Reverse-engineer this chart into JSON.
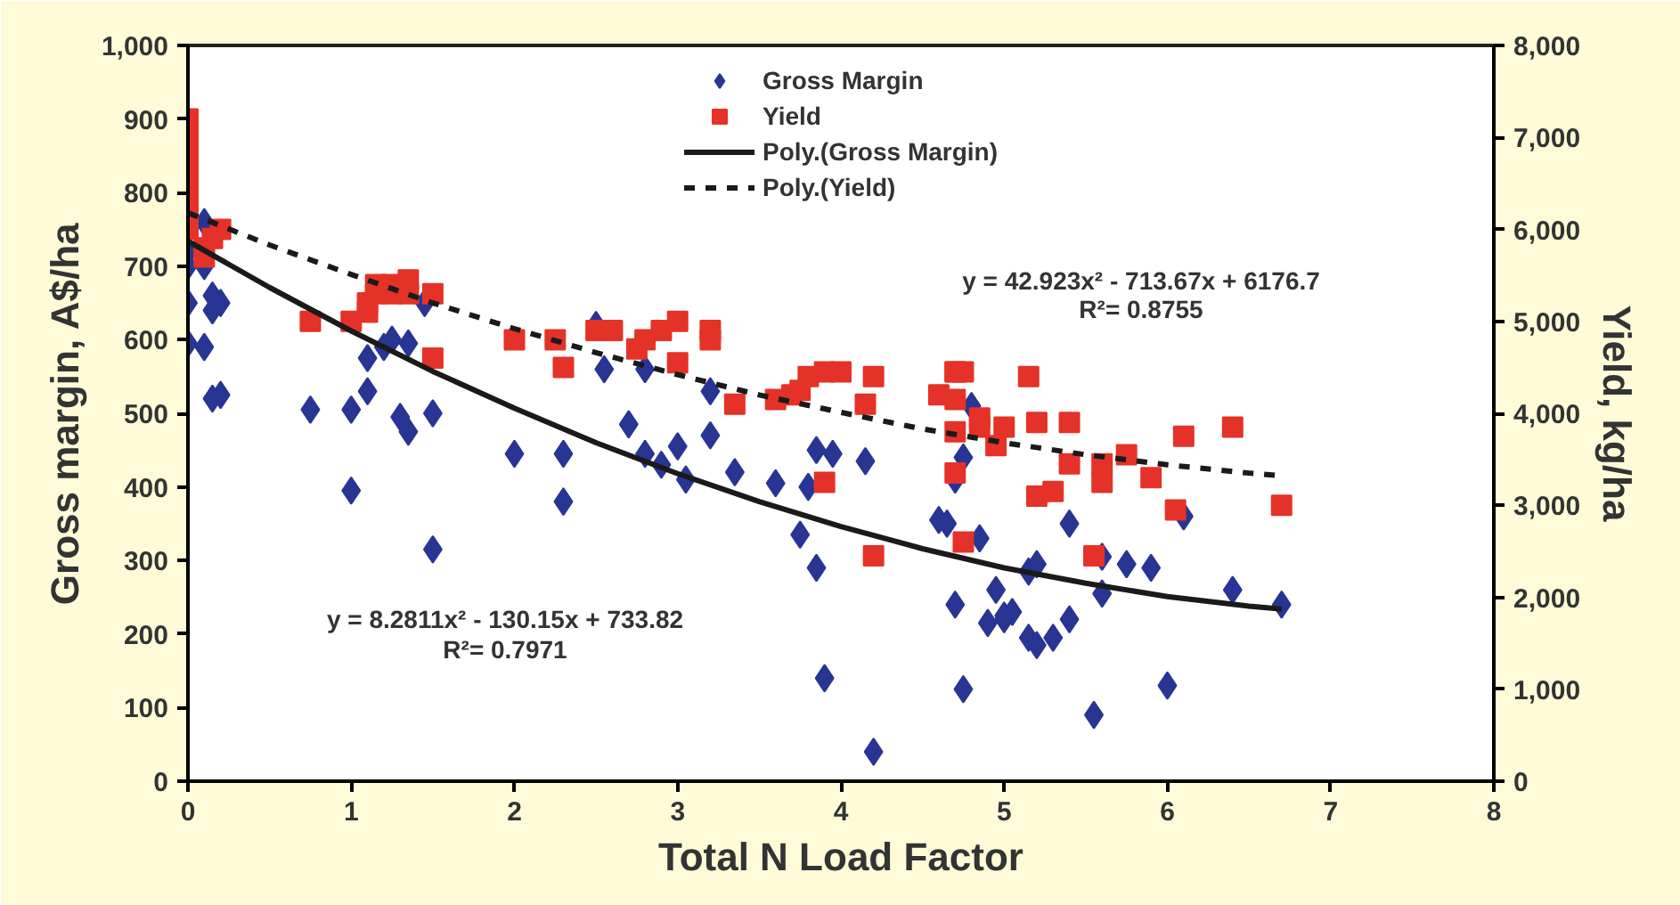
{
  "chart_data": {
    "type": "scatter",
    "xlabel": "Total N Load Factor",
    "ylabel": "Gross margin, A$/ha",
    "y2label": "Yield, kg/ha",
    "xlim": [
      0,
      8
    ],
    "xticks": [
      0,
      1,
      2,
      3,
      4,
      5,
      6,
      7,
      8
    ],
    "ylim": [
      0,
      1000
    ],
    "yticks": [
      0,
      100,
      200,
      300,
      400,
      500,
      600,
      700,
      800,
      900,
      {
        "value": 1000,
        "label": "1,000"
      }
    ],
    "y2lim": [
      0,
      8000
    ],
    "y2ticks": [
      0,
      {
        "value": 1000,
        "label": "1,000"
      },
      {
        "value": 2000,
        "label": "2,000"
      },
      {
        "value": 3000,
        "label": "3,000"
      },
      {
        "value": 4000,
        "label": "4,000"
      },
      {
        "value": 5000,
        "label": "5,000"
      },
      {
        "value": 6000,
        "label": "6,000"
      },
      {
        "value": 7000,
        "label": "7,000"
      },
      {
        "value": 8000,
        "label": "8,000"
      }
    ],
    "legend": "top",
    "grid": false,
    "series": [
      {
        "name": "Gross Margin",
        "marker": "diamond",
        "color": "#283593",
        "x": [
          0,
          0,
          0,
          0,
          0.1,
          0.1,
          0.15,
          0.15,
          0.2,
          0.1,
          0.15,
          0.2,
          0.75,
          1.0,
          1.0,
          1.1,
          1.1,
          1.2,
          1.25,
          1.35,
          1.35,
          1.3,
          1.5,
          1.5,
          1.45,
          2.0,
          2.3,
          2.3,
          2.5,
          2.55,
          2.7,
          2.8,
          2.8,
          2.9,
          3.0,
          3.05,
          3.2,
          3.2,
          3.35,
          3.6,
          3.75,
          3.8,
          3.85,
          3.85,
          3.9,
          3.95,
          4.15,
          4.2,
          4.6,
          4.65,
          4.7,
          4.7,
          4.75,
          4.75,
          4.8,
          4.85,
          4.9,
          4.95,
          5.0,
          5.0,
          5.05,
          5.15,
          5.15,
          5.2,
          5.2,
          5.3,
          5.4,
          5.4,
          5.55,
          5.6,
          5.6,
          5.75,
          5.9,
          6.0,
          6.1,
          6.4,
          6.7
        ],
        "values": [
          720,
          700,
          650,
          595,
          760,
          700,
          660,
          640,
          650,
          590,
          520,
          525,
          505,
          395,
          505,
          530,
          575,
          590,
          600,
          595,
          475,
          495,
          315,
          500,
          650,
          445,
          445,
          380,
          620,
          560,
          485,
          445,
          560,
          430,
          455,
          410,
          470,
          530,
          420,
          405,
          335,
          400,
          450,
          290,
          140,
          445,
          435,
          40,
          355,
          350,
          240,
          410,
          125,
          440,
          510,
          330,
          215,
          260,
          225,
          220,
          230,
          285,
          195,
          185,
          295,
          195,
          350,
          220,
          90,
          305,
          255,
          295,
          290,
          130,
          360,
          260,
          240
        ]
      },
      {
        "name": "Yield",
        "marker": "square",
        "color": "#e53228",
        "axis": "y2",
        "x": [
          0,
          0,
          0,
          0,
          0,
          0,
          0,
          0.1,
          0.1,
          0.15,
          0.2,
          0.75,
          1.0,
          1.1,
          1.1,
          1.15,
          1.15,
          1.25,
          1.25,
          1.35,
          1.35,
          1.5,
          1.5,
          2.0,
          2.25,
          2.3,
          2.5,
          2.6,
          2.75,
          2.8,
          2.9,
          3.0,
          3.0,
          3.2,
          3.2,
          3.35,
          3.6,
          3.7,
          3.75,
          3.8,
          3.9,
          3.9,
          4.0,
          4.15,
          4.2,
          4.2,
          4.6,
          4.7,
          4.7,
          4.7,
          4.7,
          4.7,
          4.75,
          4.75,
          4.85,
          4.85,
          4.95,
          5.0,
          5.15,
          5.2,
          5.2,
          5.3,
          5.4,
          5.4,
          5.55,
          5.6,
          5.6,
          5.75,
          5.9,
          6.05,
          6.1,
          6.4,
          6.7
        ],
        "values": [
          7200,
          7000,
          6800,
          6600,
          6400,
          6200,
          6000,
          5700,
          5800,
          5900,
          6000,
          5000,
          5000,
          5200,
          5100,
          5300,
          5400,
          5400,
          5300,
          5450,
          5300,
          5300,
          4600,
          4800,
          4800,
          4500,
          4900,
          4900,
          4700,
          4800,
          4900,
          5000,
          4550,
          4900,
          4800,
          4100,
          4150,
          4200,
          4250,
          4400,
          4450,
          3250,
          4450,
          4100,
          4400,
          2450,
          4200,
          4450,
          4450,
          4150,
          3800,
          3350,
          2600,
          4450,
          3850,
          3950,
          3650,
          3850,
          4400,
          3900,
          3100,
          3150,
          3900,
          3450,
          2450,
          3450,
          3250,
          3550,
          3300,
          2950,
          3750,
          3850,
          3000
        ]
      },
      {
        "name": "Poly.(Gross Margin)",
        "type": "line",
        "line_style": "solid",
        "color": "#1a1a1a",
        "x": [
          0,
          0.5,
          1,
          1.5,
          2,
          2.5,
          3,
          3.5,
          4,
          4.5,
          5,
          5.5,
          6,
          6.5,
          6.7
        ],
        "values": [
          734,
          671,
          612,
          557,
          507,
          460,
          418,
          380,
          346,
          316,
          290,
          269,
          251,
          238,
          234
        ]
      },
      {
        "name": "Poly.(Yield)",
        "type": "line",
        "line_style": "dashed",
        "color": "#1a1a1a",
        "axis": "y2",
        "x": [
          0,
          0.5,
          1,
          1.5,
          2,
          2.5,
          3,
          3.5,
          4,
          4.5,
          5,
          5.5,
          6,
          6.5,
          6.7
        ],
        "values": [
          6180,
          5830,
          5510,
          5200,
          4920,
          4660,
          4420,
          4200,
          4010,
          3830,
          3680,
          3550,
          3440,
          3350,
          3320
        ]
      }
    ],
    "annotations": [
      "y = 8.2811x² - 130.15x + 733.82",
      "R²= 0.7971",
      "y = 42.923x² - 713.67x + 6176.7",
      "R²= 0.8755"
    ]
  }
}
